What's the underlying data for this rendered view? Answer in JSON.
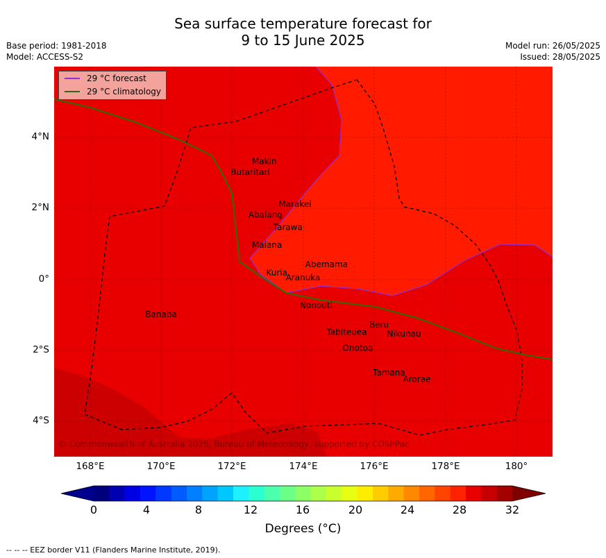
{
  "title_line1": "Sea surface temperature forecast for",
  "title_line2": "9 to 15 June 2025",
  "meta_left": {
    "base_period": "Base period: 1981-2018",
    "model": "Model: ACCESS-S2"
  },
  "meta_right": {
    "model_run": "Model run: 26/05/2025",
    "issued": "Issued: 28/05/2025"
  },
  "legend": [
    {
      "label": "29 °C  forecast",
      "color": "#8e2fd9"
    },
    {
      "label": "29 °C  climatology",
      "color": "#2b6e09"
    }
  ],
  "x_ticks": [
    "168°E",
    "170°E",
    "172°E",
    "174°E",
    "176°E",
    "178°E",
    "180°"
  ],
  "y_ticks": [
    "4°N",
    "2°N",
    "0°",
    "2°S",
    "4°S"
  ],
  "places": [
    {
      "name": "Makin",
      "lon": 172.55,
      "lat": 3.25
    },
    {
      "name": "Butaritari",
      "lon": 171.95,
      "lat": 2.95
    },
    {
      "name": "Marakei",
      "lon": 173.3,
      "lat": 2.05
    },
    {
      "name": "Abaiang",
      "lon": 172.45,
      "lat": 1.75
    },
    {
      "name": "Tarawa",
      "lon": 173.15,
      "lat": 1.4
    },
    {
      "name": "Maiana",
      "lon": 172.55,
      "lat": 0.9
    },
    {
      "name": "Abemama",
      "lon": 174.05,
      "lat": 0.35
    },
    {
      "name": "Kuria",
      "lon": 172.95,
      "lat": 0.12
    },
    {
      "name": "Aranuka",
      "lon": 173.5,
      "lat": -0.02
    },
    {
      "name": "Nonouti",
      "lon": 173.9,
      "lat": -0.8
    },
    {
      "name": "Banaba",
      "lon": 169.55,
      "lat": -1.05
    },
    {
      "name": "Beru",
      "lon": 175.85,
      "lat": -1.35
    },
    {
      "name": "Tabiteuea",
      "lon": 174.65,
      "lat": -1.55
    },
    {
      "name": "Nikunau",
      "lon": 176.35,
      "lat": -1.6
    },
    {
      "name": "Onotoa",
      "lon": 175.1,
      "lat": -2.0
    },
    {
      "name": "Tamana",
      "lon": 175.95,
      "lat": -2.7
    },
    {
      "name": "Arorae",
      "lon": 176.8,
      "lat": -2.88
    }
  ],
  "copyright": "© Commonwealth of Australia 2025, Bureau of Meteorology, supported by COSPPac",
  "colorbar": {
    "label": "Degrees ($^\\circ$C)",
    "label_display": "Degrees (°C)",
    "ticks": [
      "0",
      "4",
      "8",
      "12",
      "16",
      "20",
      "24",
      "28",
      "32"
    ],
    "colors": [
      "#00007f",
      "#0000b2",
      "#0000e5",
      "#0014ff",
      "#0038ff",
      "#005cff",
      "#0080ff",
      "#00a4ff",
      "#00c8ff",
      "#1ff0ff",
      "#2bffd2",
      "#4cffac",
      "#6cff88",
      "#8cff67",
      "#acff4a",
      "#caff2e",
      "#e8ff14",
      "#ffed00",
      "#ffcc00",
      "#ffaa00",
      "#ff8800",
      "#ff6600",
      "#ff4400",
      "#ff2200",
      "#e80000",
      "#c60000",
      "#a30000"
    ],
    "under_color": "#00008f",
    "over_color": "#7f0000"
  },
  "colors": {
    "sst_28_29": "#ff1a00",
    "sst_29_30": "#e80000",
    "sst_30_31": "#cc0000",
    "eez": "#000000"
  },
  "footnote": "-- -- -- EEZ border V11 (Flanders Marine Institute, 2019)."
}
